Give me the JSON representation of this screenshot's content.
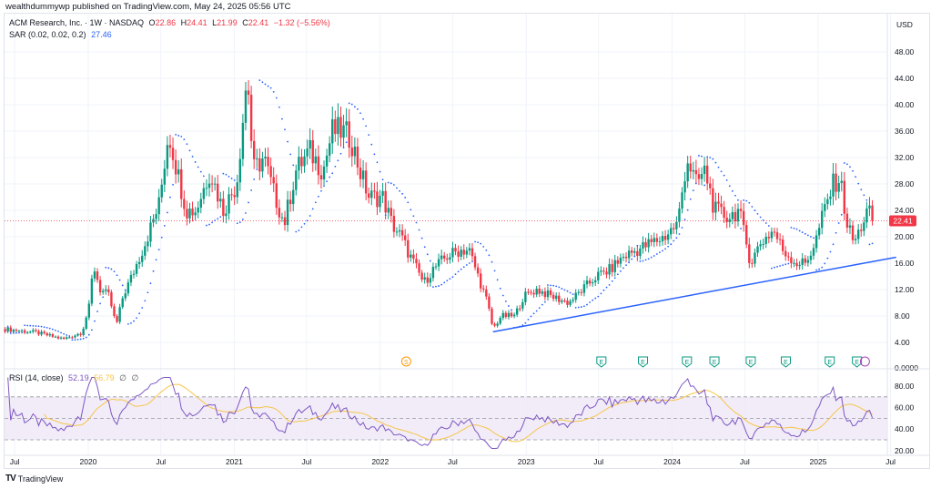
{
  "header": {
    "published": "wealthdummywp published on TradingView.com, May 24, 2025 05:56 UTC"
  },
  "legend": {
    "symbol": "ACM Research, Inc. · 1W · NASDAQ",
    "o_label": "O",
    "o": "22.86",
    "h_label": "H",
    "h": "24.41",
    "l_label": "L",
    "l": "21.99",
    "c_label": "C",
    "c": "22.41",
    "change": "−1.32 (−5.56%)",
    "sar": "SAR (0.02, 0.02, 0.2)",
    "sar_value": "27.46",
    "rsi": "RSI (14, close)",
    "rsi_value": "52.19",
    "rsi_ma_value": "56.79",
    "hide1": "∅",
    "hide2": "∅"
  },
  "colors": {
    "up": "#089981",
    "down": "#f23645",
    "sar": "#2962ff",
    "trendline": "#2962ff",
    "rsi": "#7e57c2",
    "rsi_ma": "#f7c548",
    "rsi_band": "#ede7f6"
  },
  "footer": {
    "brand": "TradingView",
    "logo_text": "TV"
  },
  "chart_data": [
    {
      "type": "candlestick",
      "interval": "1W",
      "currency": "USD",
      "ylim": [
        0,
        50
      ],
      "yticks": [
        "48.00",
        "44.00",
        "40.00",
        "36.00",
        "32.00",
        "28.00",
        "24.00",
        "20.00",
        "16.00",
        "12.00",
        "8.00",
        "4.00",
        "0.0000"
      ],
      "ytick_values": [
        48,
        44,
        40,
        36,
        32,
        28,
        24,
        20,
        16,
        12,
        8,
        4,
        0
      ],
      "xticks": [
        [
          "2019-07-01",
          "Jul"
        ],
        [
          "2020-01-01",
          "2020"
        ],
        [
          "2020-07-01",
          "Jul"
        ],
        [
          "2021-01-01",
          "2021"
        ],
        [
          "2021-07-01",
          "Jul"
        ],
        [
          "2022-01-01",
          "2022"
        ],
        [
          "2022-07-01",
          "Jul"
        ],
        [
          "2023-01-01",
          "2023"
        ],
        [
          "2023-07-01",
          "Jul"
        ],
        [
          "2024-01-01",
          "2024"
        ],
        [
          "2024-07-01",
          "Jul"
        ],
        [
          "2025-01-01",
          "2025"
        ],
        [
          "2025-07-01",
          "Jul"
        ]
      ],
      "last_price": "22.41",
      "approx_closes": [
        [
          "2019-06-07",
          6
        ],
        [
          "2019-08-23",
          5.5
        ],
        [
          "2019-10-31",
          4.5
        ],
        [
          "2019-12-16",
          5.5
        ],
        [
          "2020-01-06",
          10
        ],
        [
          "2020-01-13",
          16
        ],
        [
          "2020-01-31",
          12
        ],
        [
          "2020-02-22",
          11
        ],
        [
          "2020-03-11",
          6.5
        ],
        [
          "2020-03-28",
          11
        ],
        [
          "2020-04-19",
          14
        ],
        [
          "2020-05-22",
          19
        ],
        [
          "2020-06-27",
          25
        ],
        [
          "2020-07-20",
          36
        ],
        [
          "2020-08-11",
          30
        ],
        [
          "2020-09-03",
          24
        ],
        [
          "2020-09-27",
          24
        ],
        [
          "2020-11-01",
          30
        ],
        [
          "2020-12-04",
          24
        ],
        [
          "2021-01-07",
          28
        ],
        [
          "2021-02-03",
          45
        ],
        [
          "2021-02-17",
          30
        ],
        [
          "2021-03-16",
          32
        ],
        [
          "2021-04-08",
          27
        ],
        [
          "2021-05-06",
          22
        ],
        [
          "2021-06-04",
          30
        ],
        [
          "2021-07-08",
          33
        ],
        [
          "2021-08-11",
          30
        ],
        [
          "2021-09-03",
          36
        ],
        [
          "2021-09-26",
          36
        ],
        [
          "2021-10-19",
          35
        ],
        [
          "2021-11-11",
          30
        ],
        [
          "2021-12-04",
          26
        ],
        [
          "2022-01-07",
          26
        ],
        [
          "2022-01-30",
          22
        ],
        [
          "2022-02-22",
          20
        ],
        [
          "2022-03-17",
          17
        ],
        [
          "2022-04-20",
          13
        ],
        [
          "2022-05-12",
          15
        ],
        [
          "2022-06-16",
          17
        ],
        [
          "2022-07-19",
          18
        ],
        [
          "2022-08-11",
          18
        ],
        [
          "2022-09-03",
          14
        ],
        [
          "2022-09-26",
          10
        ],
        [
          "2022-10-10",
          6
        ],
        [
          "2022-10-30",
          8
        ],
        [
          "2022-12-03",
          8
        ],
        [
          "2022-12-26",
          11
        ],
        [
          "2023-01-28",
          12
        ],
        [
          "2023-03-04",
          11
        ],
        [
          "2023-04-17",
          10
        ],
        [
          "2023-05-22",
          12
        ],
        [
          "2023-06-25",
          14
        ],
        [
          "2023-07-29",
          15
        ],
        [
          "2023-09-01",
          17
        ],
        [
          "2023-10-05",
          18
        ],
        [
          "2023-11-08",
          19
        ],
        [
          "2023-12-12",
          20
        ],
        [
          "2024-01-15",
          22
        ],
        [
          "2024-02-07",
          32
        ],
        [
          "2024-03-01",
          28
        ],
        [
          "2024-03-24",
          30
        ],
        [
          "2024-04-16",
          24
        ],
        [
          "2024-05-20",
          23
        ],
        [
          "2024-06-16",
          24
        ],
        [
          "2024-07-16",
          16
        ],
        [
          "2024-08-08",
          19
        ],
        [
          "2024-09-11",
          21
        ],
        [
          "2024-10-04",
          18
        ],
        [
          "2024-11-07",
          16
        ],
        [
          "2024-11-30",
          16
        ],
        [
          "2024-12-24",
          19
        ],
        [
          "2025-01-16",
          24
        ],
        [
          "2025-02-08",
          28
        ],
        [
          "2025-02-24",
          29
        ],
        [
          "2025-03-14",
          22
        ],
        [
          "2025-04-01",
          19
        ],
        [
          "2025-05-05",
          24
        ],
        [
          "2025-05-19",
          22.41
        ]
      ],
      "trendline": [
        [
          "2022-10-10",
          5.6
        ],
        [
          "2025-07-15",
          16.9
        ]
      ],
      "events": [
        {
          "date": "2022-03-07",
          "label": "S",
          "kind": "split"
        },
        {
          "date": "2023-07-08",
          "label": "E",
          "kind": "earnings"
        },
        {
          "date": "2023-10-20",
          "label": "E",
          "kind": "earnings"
        },
        {
          "date": "2024-02-07",
          "label": "E",
          "kind": "earnings"
        },
        {
          "date": "2024-04-16",
          "label": "E",
          "kind": "earnings"
        },
        {
          "date": "2024-07-16",
          "label": "E",
          "kind": "earnings"
        },
        {
          "date": "2024-10-12",
          "label": "E",
          "kind": "earnings"
        },
        {
          "date": "2025-01-30",
          "label": "E",
          "kind": "earnings"
        },
        {
          "date": "2025-04-08",
          "label": "E",
          "kind": "earnings"
        },
        {
          "date": "2025-04-28",
          "label": "",
          "kind": "upcoming"
        }
      ]
    },
    {
      "type": "line",
      "title": "RSI (14, close)",
      "ylim": [
        20,
        90
      ],
      "yticks": [
        "80.00",
        "60.00",
        "40.00",
        "20.00"
      ],
      "ytick_values": [
        80,
        60,
        40,
        20
      ],
      "band": [
        30,
        70
      ],
      "midline": 50,
      "series": [
        {
          "name": "RSI"
        },
        {
          "name": "RSI-based MA"
        }
      ]
    }
  ]
}
